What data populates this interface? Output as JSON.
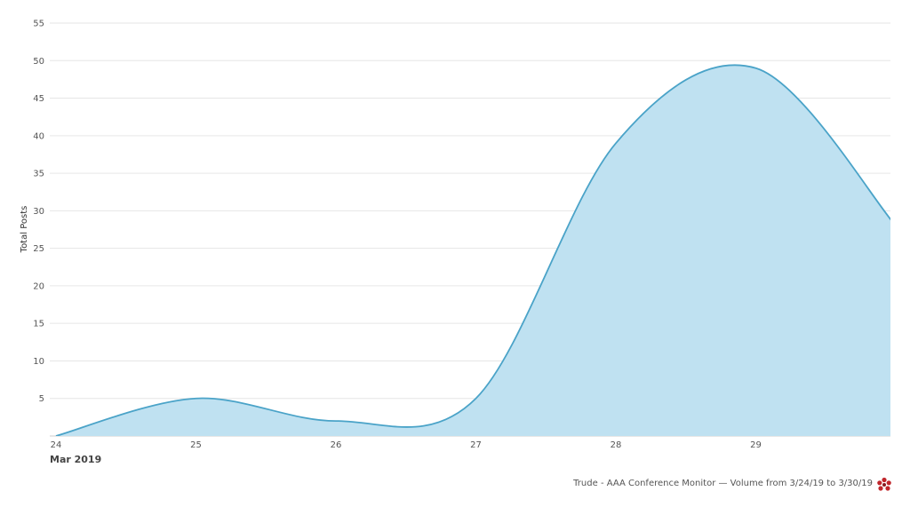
{
  "chart_data": {
    "type": "area",
    "title": "",
    "ylabel": "Total Posts",
    "xlabel": "Mar 2019",
    "x": [
      "2019-03-24",
      "2019-03-25",
      "2019-03-26",
      "2019-03-27",
      "2019-03-28",
      "2019-03-29",
      "2019-03-30"
    ],
    "x_tick_labels": [
      "24",
      "25",
      "26",
      "27",
      "28",
      "29"
    ],
    "series": [
      {
        "values": [
          0,
          5,
          2,
          5,
          39,
          49,
          28
        ]
      }
    ],
    "ylim": [
      0,
      55
    ],
    "y_ticks": [
      5,
      10,
      15,
      20,
      25,
      30,
      35,
      40,
      45,
      50,
      55
    ],
    "grid": true,
    "legend": "none",
    "colors": {
      "line": "#4aa3c8",
      "fill": "#bfe1f1",
      "grid": "#e6e6e6"
    }
  },
  "footer": {
    "text": "Trude - AAA Conference Monitor — Volume from 3/24/19 to 3/30/19"
  }
}
